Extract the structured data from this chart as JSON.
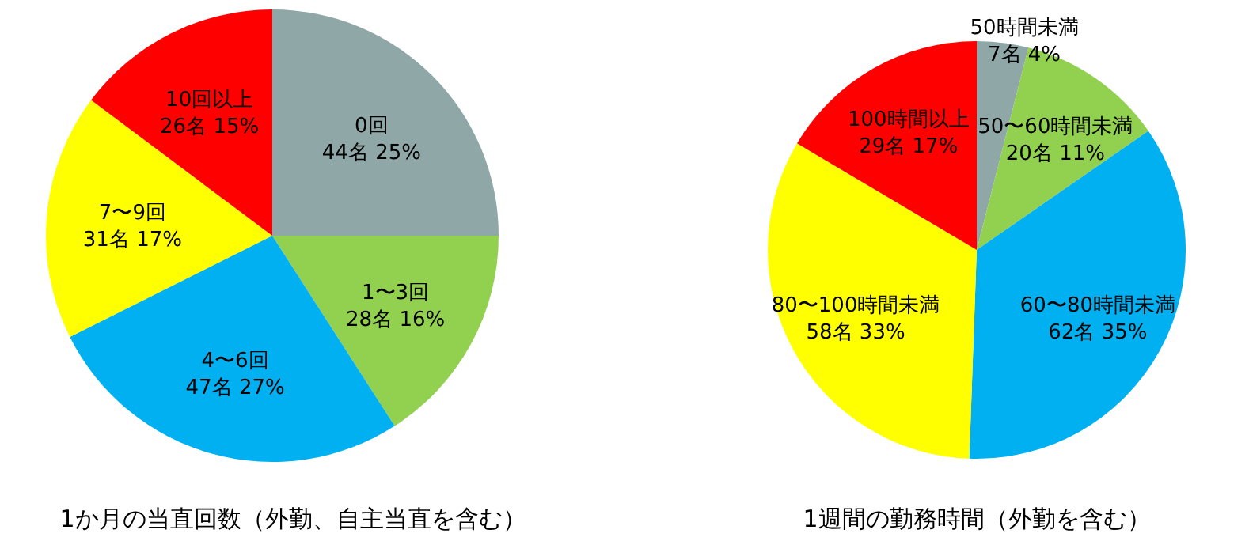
{
  "chart_data": [
    {
      "type": "pie",
      "title": "1か月の当直回数（外勤、自主当直を含む）",
      "categories": [
        "0回",
        "1〜3回",
        "4〜6回",
        "7〜9回",
        "10回以上"
      ],
      "values": [
        44,
        28,
        47,
        31,
        26
      ],
      "value_labels": [
        "44名 25%",
        "28名 16%",
        "47名 27%",
        "31名 17%",
        "26名 15%"
      ],
      "colors": [
        "#8fa7a7",
        "#92d050",
        "#00b0f0",
        "#ffff00",
        "#ff0000"
      ]
    },
    {
      "type": "pie",
      "title": "1週間の勤務時間（外勤を含む）",
      "categories": [
        "50時間未満",
        "50〜60時間未満",
        "60〜80時間未満",
        "80〜100時間未満",
        "100時間以上"
      ],
      "values": [
        7,
        20,
        62,
        58,
        29
      ],
      "value_labels": [
        "7名 4%",
        "20名 11%",
        "62名 35%",
        "58名 33%",
        "29名 17%"
      ],
      "colors": [
        "#8fa7a7",
        "#92d050",
        "#00b0f0",
        "#ffff00",
        "#ff0000"
      ]
    }
  ]
}
